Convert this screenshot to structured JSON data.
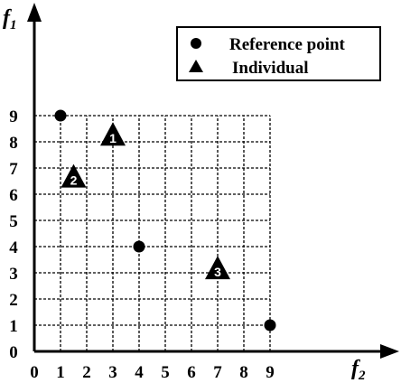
{
  "chart_data": {
    "type": "scatter",
    "xlabel": {
      "main": "f",
      "sub": "2"
    },
    "ylabel": {
      "main": "f",
      "sub": "1"
    },
    "xlim": [
      0,
      9
    ],
    "ylim": [
      0,
      9
    ],
    "grid": true,
    "grid_style": "dashed",
    "x_ticks": [
      "0",
      "1",
      "2",
      "3",
      "4",
      "5",
      "6",
      "7",
      "8",
      "9"
    ],
    "y_ticks": [
      "0",
      "1",
      "2",
      "3",
      "4",
      "5",
      "6",
      "7",
      "8",
      "9"
    ],
    "legend": {
      "placement": "top-right",
      "entries": [
        {
          "marker": "circle",
          "label": "Reference point"
        },
        {
          "marker": "triangle",
          "label": "Individual"
        }
      ]
    },
    "series": [
      {
        "name": "Reference point",
        "marker": "circle",
        "points": [
          {
            "x": 1,
            "y": 9
          },
          {
            "x": 4,
            "y": 4
          },
          {
            "x": 9,
            "y": 1
          }
        ]
      },
      {
        "name": "Individual",
        "marker": "triangle",
        "points": [
          {
            "x": 3,
            "y": 8.2,
            "label": "1"
          },
          {
            "x": 1.5,
            "y": 6.6,
            "label": "2"
          },
          {
            "x": 7,
            "y": 3.1,
            "label": "3"
          }
        ]
      }
    ]
  }
}
